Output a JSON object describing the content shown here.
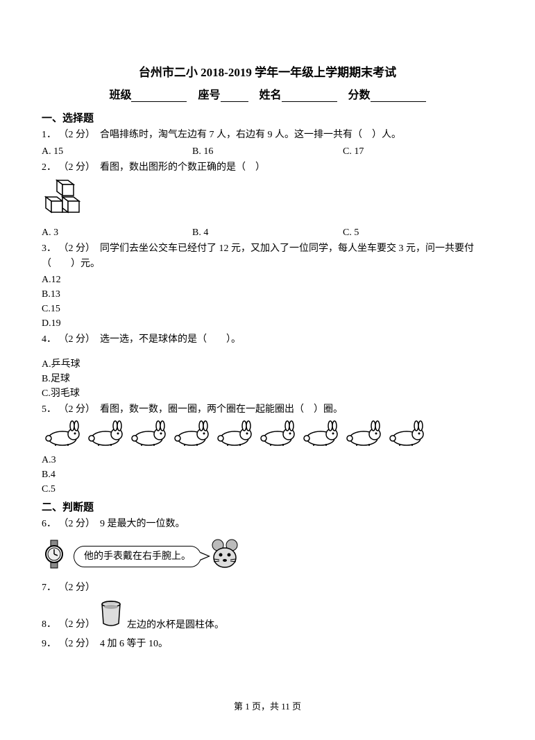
{
  "title": "台州市二小 2018-2019 学年一年级上学期期末考试",
  "info": {
    "classLabel": "班级",
    "seatLabel": "座号",
    "nameLabel": "姓名",
    "scoreLabel": "分数",
    "classBlankWidth": 80,
    "seatBlankWidth": 40,
    "nameBlankWidth": 80,
    "scoreBlankWidth": 80
  },
  "section1": {
    "header": "一、选择题",
    "questions": [
      {
        "num": "1．",
        "points": "（2 分）",
        "text": "合唱排练时，淘气左边有 7 人，右边有 9 人。这一排一共有（　）人。",
        "options": [
          "A. 15",
          "B. 16",
          "C. 17"
        ],
        "optionsLayout": "row"
      },
      {
        "num": "2．",
        "points": "（2 分）",
        "text": "看图，数出图形的个数正确的是（　）",
        "hasCubes": true,
        "options": [
          "A. 3",
          "B. 4",
          "C. 5"
        ],
        "optionsLayout": "row"
      },
      {
        "num": "3．",
        "points": "（2 分）",
        "text": "同学们去坐公交车已经付了 12 元，又加入了一位同学，每人坐车要交 3 元，问一共要付（　　）元。",
        "options": [
          "A.12",
          "B.13",
          "C.15",
          "D.19"
        ],
        "optionsLayout": "list"
      },
      {
        "num": "4．",
        "points": "（2 分）",
        "text": "选一选，不是球体的是（　　）。",
        "options": [
          "A.乒乓球",
          "B.足球",
          "C.羽毛球"
        ],
        "optionsLayout": "list",
        "extraSpace": true
      },
      {
        "num": "5．",
        "points": "（2 分）",
        "text": "看图，数一数，圈一圈，两个圈在一起能圈出（　）圈。",
        "hasRabbits": true,
        "rabbitCount": 9,
        "options": [
          "A.3",
          "B.4",
          "C.5"
        ],
        "optionsLayout": "list"
      }
    ]
  },
  "section2": {
    "header": "二、判断题",
    "questions": [
      {
        "num": "6．",
        "points": "（2 分）",
        "text": "9 是最大的一位数。"
      },
      {
        "num": "7．",
        "points": "（2 分）",
        "hasMouse": true,
        "bubbleText": "他的手表戴在右手腕上。"
      },
      {
        "num": "8．",
        "points": "（2 分）",
        "hasCup": true,
        "text": "左边的水杯是圆柱体。"
      },
      {
        "num": "9．",
        "points": "（2 分）",
        "text": "4 加 6 等于 10。"
      }
    ]
  },
  "footer": {
    "pagePrefix": "第",
    "pageNum": "1",
    "pageMid": "页，共",
    "pageTotal": "11",
    "pageSuffix": "页"
  },
  "colors": {
    "text": "#000000",
    "background": "#ffffff"
  }
}
